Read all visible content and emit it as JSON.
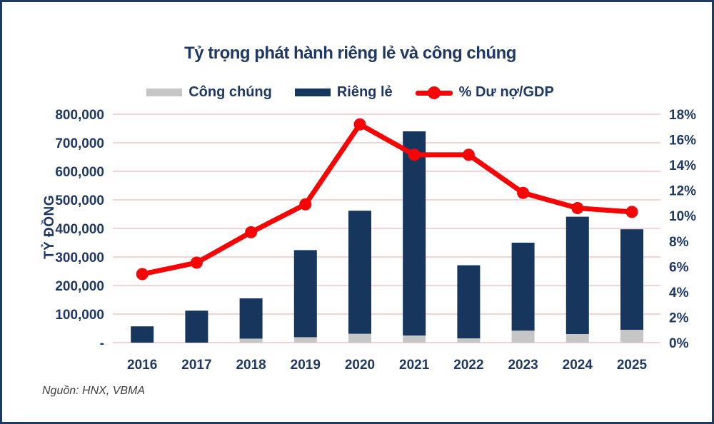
{
  "title": "Tỷ trọng phát hành riêng lẻ và công chúng",
  "source_note": "Nguồn: HNX, VBMA",
  "legend": [
    {
      "label": "Công chúng",
      "color": "#C6C6C6",
      "marker": "bar-swatch"
    },
    {
      "label": "Riêng lẻ",
      "color": "#17365D",
      "marker": "bar-swatch"
    },
    {
      "label": "% Dư nợ/GDP",
      "color": "#F50505",
      "marker": "line-marker"
    }
  ],
  "colors": {
    "navy_text": "#1F3864",
    "bar_navy": "#17365D",
    "bar_gray": "#C6C6C6",
    "line_red": "#F50505",
    "gridline": "#F4D5D5",
    "border": "#1F3864",
    "background": "#FFFFFF",
    "source_text": "#404040"
  },
  "chart_data": {
    "type": "bar",
    "subtype": "stacked-bars-with-line-combo",
    "title": "Tỷ trọng phát hành riêng lẻ và công chúng",
    "categories": [
      "2016",
      "2017",
      "2018",
      "2019",
      "2020",
      "2021",
      "2022",
      "2023",
      "2024",
      "2025"
    ],
    "series": [
      {
        "name": "Công chúng",
        "type": "bar",
        "stack": "issuance",
        "axis": "left",
        "color": "#C6C6C6",
        "values": [
          0,
          0,
          14000,
          19000,
          31000,
          25000,
          15000,
          42000,
          30000,
          45000
        ]
      },
      {
        "name": "Riêng lẻ",
        "type": "bar",
        "stack": "issuance",
        "axis": "left",
        "color": "#17365D",
        "values": [
          57000,
          112000,
          141000,
          305000,
          431000,
          715000,
          256000,
          308000,
          411000,
          352000
        ]
      },
      {
        "name": "% Dư nợ/GDP",
        "type": "line",
        "axis": "right",
        "color": "#F50505",
        "values": [
          5.4,
          6.3,
          8.7,
          10.9,
          17.2,
          14.8,
          14.8,
          11.8,
          10.6,
          10.3
        ]
      }
    ],
    "left_axis": {
      "title": "TỶ ĐỒNG",
      "min": 0,
      "max": 800000,
      "step": 100000,
      "tick_labels": [
        "-",
        "100,000",
        "200,000",
        "300,000",
        "400,000",
        "500,000",
        "600,000",
        "700,000",
        "800,000"
      ]
    },
    "right_axis": {
      "min": 0,
      "max": 18,
      "step": 2,
      "tick_labels": [
        "0%",
        "2%",
        "4%",
        "6%",
        "8%",
        "10%",
        "12%",
        "14%",
        "16%",
        "18%"
      ]
    },
    "grid": "horizontal-only",
    "legend_position": "top-center"
  }
}
